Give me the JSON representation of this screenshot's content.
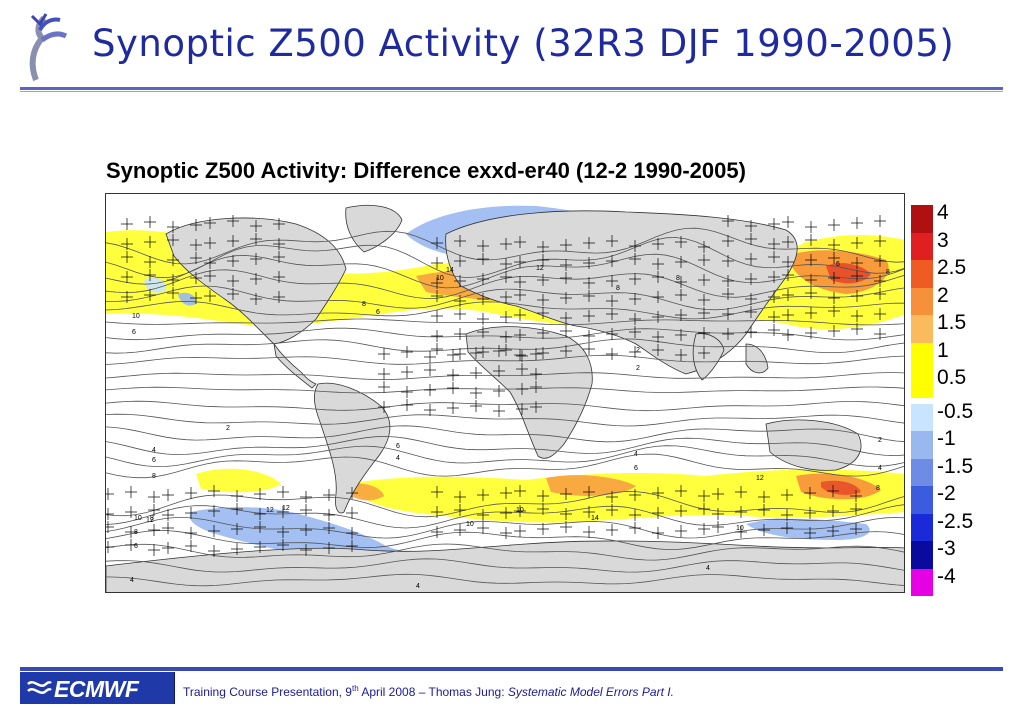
{
  "slide": {
    "title": "Synoptic Z500 Activity (32R3 DJF 1990-2005)"
  },
  "chart_data": {
    "type": "heatmap",
    "title": "Synoptic Z500 Activity: Difference exxd-er40 (12-2 1990-2005)",
    "legend": {
      "placement": "right",
      "positive_labels": [
        "4",
        "3",
        "2.5",
        "2",
        "1.5",
        "1",
        "0.5"
      ],
      "negative_labels": [
        "-0.5",
        "-1",
        "-1.5",
        "-2",
        "-2.5",
        "-3",
        "-4"
      ],
      "positive_colors": [
        "#b01010",
        "#e02020",
        "#f05a23",
        "#f7903a",
        "#fbbb5c",
        "#ffff00",
        "#ffff00"
      ],
      "negative_colors": [
        "#c8e4ff",
        "#9ab8f0",
        "#6e8ce6",
        "#3c5ce0",
        "#1a2ad8",
        "#0a0a9e",
        "#e600e6"
      ]
    },
    "contour_labels": [
      "2",
      "4",
      "6",
      "8",
      "10",
      "12",
      "14"
    ],
    "colors": {
      "land": "#d9d9d9",
      "contour": "#555555",
      "hatch": "#000000"
    }
  },
  "footer": {
    "logo_text": "ECMWF",
    "text_prefix": "Training Course Presentation, 9",
    "text_sup": "th",
    "text_mid": " April 2008 – Thomas Jung: ",
    "text_em": "Systematic Model Errors Part I."
  }
}
